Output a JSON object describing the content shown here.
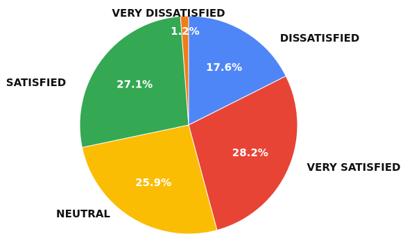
{
  "chart_data": {
    "type": "pie",
    "title": "",
    "slices": [
      {
        "label": "DISSATISFIED",
        "value": 17.6,
        "value_label": "17.6%",
        "color": "#4f86f7"
      },
      {
        "label": "VERY SATISFIED",
        "value": 28.2,
        "value_label": "28.2%",
        "color": "#e84436"
      },
      {
        "label": "NEUTRAL",
        "value": 25.9,
        "value_label": "25.9%",
        "color": "#fbbc04"
      },
      {
        "label": "SATISFIED",
        "value": 27.1,
        "value_label": "27.1%",
        "color": "#34a853"
      },
      {
        "label": "VERY DISSATISFIED",
        "value": 1.2,
        "value_label": "1.2%",
        "color": "#f07d1a"
      }
    ],
    "start_angle_deg": 0,
    "direction": "clockwise",
    "legend": "none"
  }
}
